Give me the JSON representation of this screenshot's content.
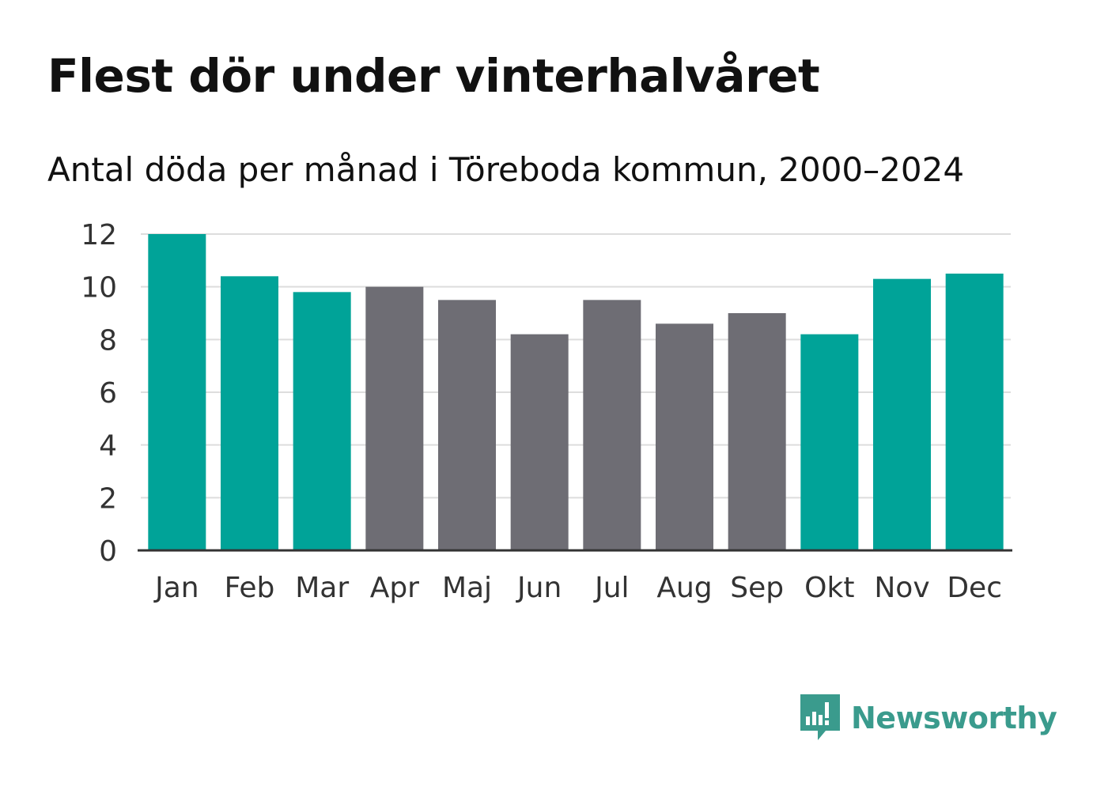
{
  "title": "Flest dör under vinterhalvåret",
  "subtitle": "Antal döda per månad i Töreboda kommun, 2000–2024",
  "brand": {
    "name": "Newsworthy",
    "icon": "newsworthy-logo-icon"
  },
  "colors": {
    "winter": "#00a398",
    "summer": "#6e6d74",
    "grid": "#dddddd",
    "axis": "#333333",
    "text": "#333333"
  },
  "chart_data": {
    "type": "bar",
    "title": "Flest dör under vinterhalvåret",
    "subtitle": "Antal döda per månad i Töreboda kommun, 2000–2024",
    "xlabel": "",
    "ylabel": "",
    "categories": [
      "Jan",
      "Feb",
      "Mar",
      "Apr",
      "Maj",
      "Jun",
      "Jul",
      "Aug",
      "Sep",
      "Okt",
      "Nov",
      "Dec"
    ],
    "values": [
      12.0,
      10.4,
      9.8,
      10.0,
      9.5,
      8.2,
      9.5,
      8.6,
      9.0,
      8.2,
      10.3,
      10.5
    ],
    "groups": [
      "winter",
      "winter",
      "winter",
      "summer",
      "summer",
      "summer",
      "summer",
      "summer",
      "summer",
      "winter",
      "winter",
      "winter"
    ],
    "yticks": [
      0,
      2,
      4,
      6,
      8,
      10,
      12
    ],
    "ylim": [
      0,
      12
    ],
    "grid": true
  }
}
